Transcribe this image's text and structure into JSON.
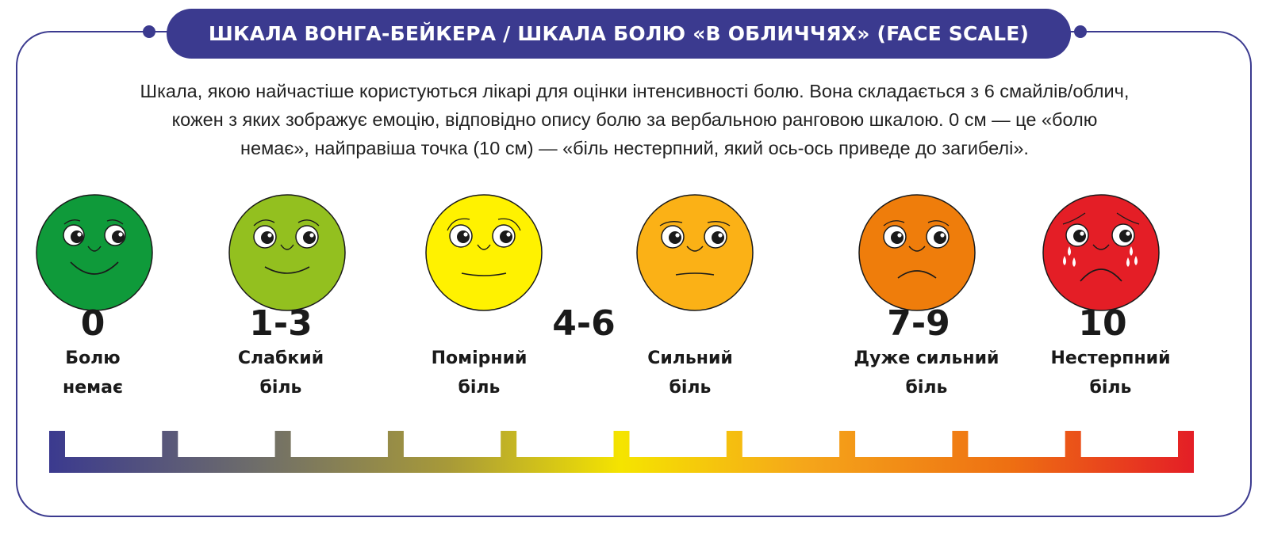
{
  "header": {
    "title": "ШКАЛА ВОНГА-БЕЙКЕРА / ШКАЛА БОЛЮ «В ОБЛИЧЧЯХ» (FACE SCALE)"
  },
  "description": {
    "line1": "Шкала, якою найчастіше користуються лікарі для оцінки інтенсивності болю. Вона складається з 6 смайлів/облич,",
    "line2": "кожен з яких зображує емоцію, відповідно опису болю за вербальною ранговою шкалою. 0 см — це «болю",
    "line3": "немає», найправіша точка (10 см) — «біль нестерпний, який ось-ось приведе до загибелі»."
  },
  "faces": [
    {
      "id": "no-pain",
      "color": "#0f9a3a",
      "expression": "big-smile"
    },
    {
      "id": "mild",
      "color": "#93c01f",
      "expression": "smile"
    },
    {
      "id": "moderate",
      "color": "#fff200",
      "expression": "slight-smile"
    },
    {
      "id": "severe",
      "color": "#fbb116",
      "expression": "flat"
    },
    {
      "id": "very-severe",
      "color": "#ef7d0b",
      "expression": "frown"
    },
    {
      "id": "unbearable",
      "color": "#e41e26",
      "expression": "crying"
    }
  ],
  "values": {
    "v0": "0",
    "v1": "1-3",
    "v2": "4-6",
    "v3": "7-9",
    "v4": "10"
  },
  "labels": {
    "l0": {
      "line1": "Болю",
      "line2": "немає"
    },
    "l1": {
      "line1": "Слабкий",
      "line2": "біль"
    },
    "l2": {
      "line1": "Помірний",
      "line2": "біль"
    },
    "l3": {
      "line1": "Сильний",
      "line2": "біль"
    },
    "l4": {
      "line1": "Дуже сильний",
      "line2": "біль"
    },
    "l5": {
      "line1": "Нестерпний",
      "line2": "біль"
    }
  },
  "scale": {
    "ticks": 11,
    "gradient": [
      "#3b3a8f",
      "#7a7a4a",
      "#d8c21e",
      "#f7e600",
      "#f5a31a",
      "#ee6b12",
      "#e41e26"
    ]
  },
  "colors": {
    "accent": "#3b3a8f"
  }
}
